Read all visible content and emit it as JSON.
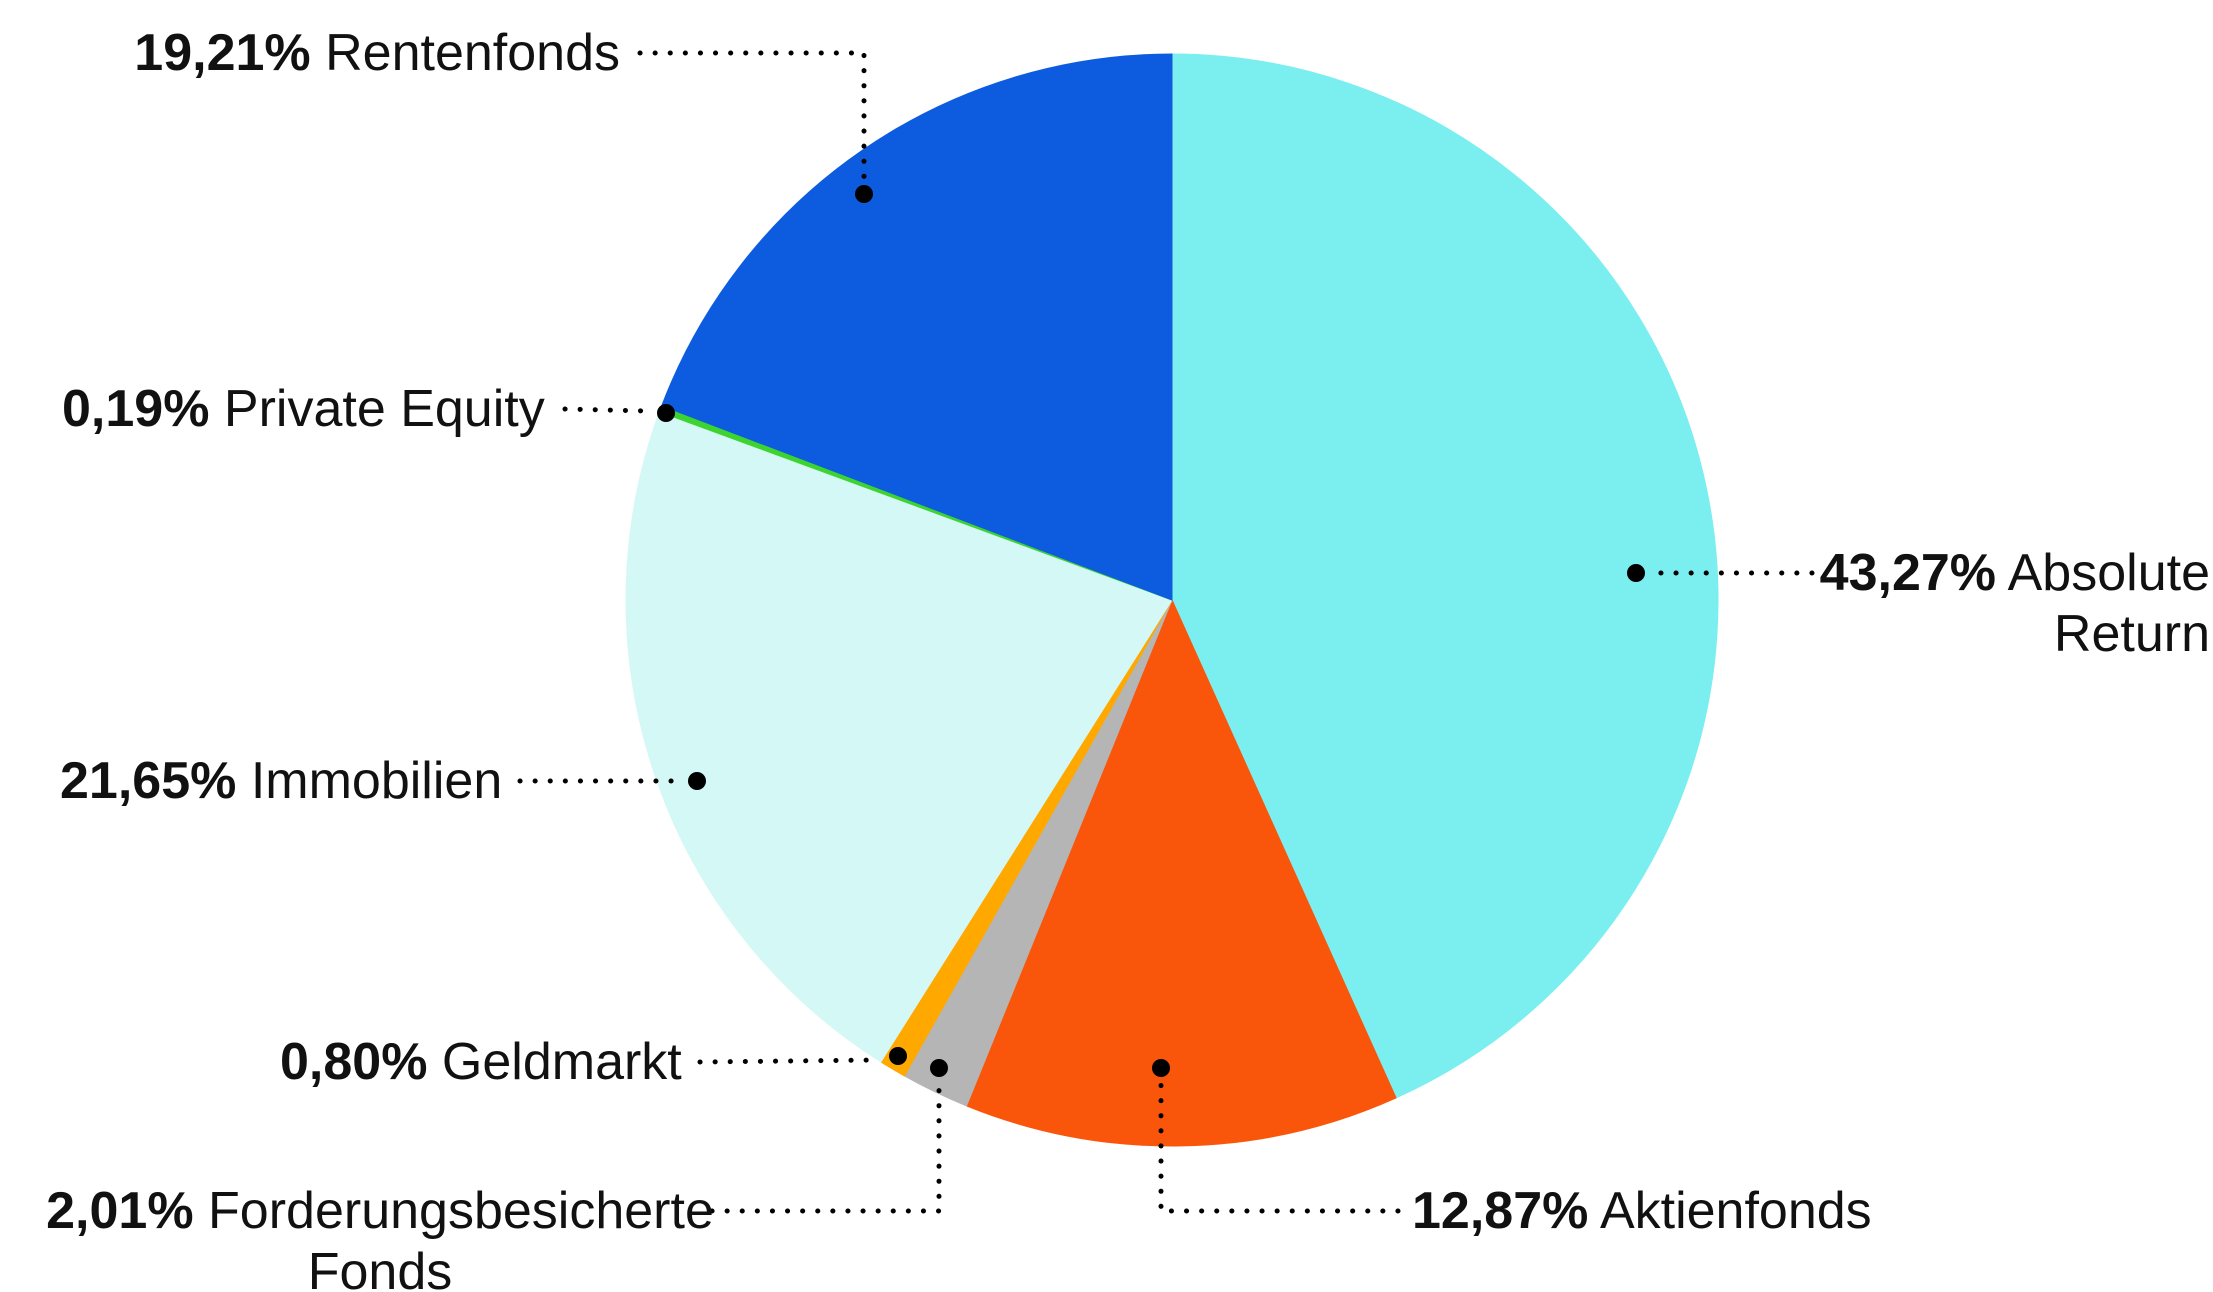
{
  "chart_data": {
    "type": "pie",
    "title": "",
    "unit": "%",
    "direction": "clockwise",
    "start_angle_deg": 0,
    "legend_position": "callout-labels",
    "background_color": "#ffffff",
    "leader_line_color": "#000000",
    "label_text_color": "#111111",
    "slices": [
      {
        "name": "Absolute Return",
        "percent_label": "43,27%",
        "value": 43.27,
        "color": "#7beef0"
      },
      {
        "name": "Aktienfonds",
        "percent_label": "12,87%",
        "value": 12.87,
        "color": "#f9560b"
      },
      {
        "name": "Forderungsbesicherte Fonds",
        "percent_label": "2,01%",
        "value": 2.01,
        "color": "#b5b5b5"
      },
      {
        "name": "Geldmarkt",
        "percent_label": "0,80%",
        "value": 0.8,
        "color": "#ffa800"
      },
      {
        "name": "Immobilien",
        "percent_label": "21,65%",
        "value": 21.65,
        "color": "#d4f8f6"
      },
      {
        "name": "Private Equity",
        "percent_label": "0,19%",
        "value": 0.19,
        "color": "#3ed430"
      },
      {
        "name": "Rentenfonds",
        "percent_label": "19,21%",
        "value": 19.21,
        "color": "#0d5ce0"
      }
    ]
  }
}
